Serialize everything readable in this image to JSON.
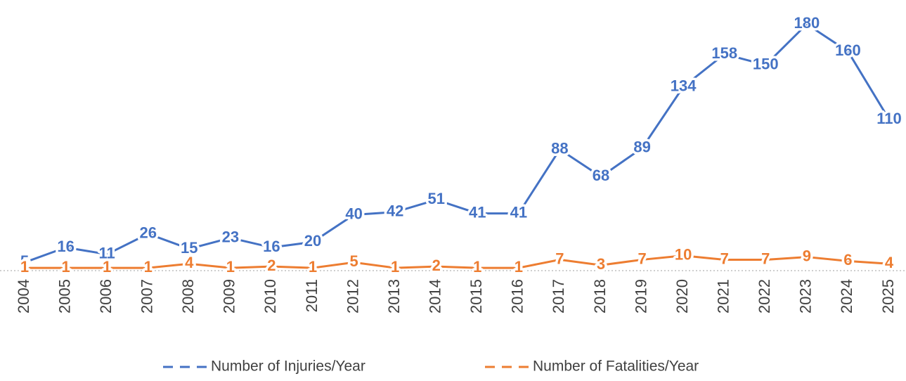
{
  "chart_data": {
    "type": "line",
    "categories": [
      "2004",
      "2005",
      "2006",
      "2007",
      "2008",
      "2009",
      "2010",
      "2011",
      "2012",
      "2013",
      "2014",
      "2015",
      "2016",
      "2017",
      "2018",
      "2019",
      "2020",
      "2021",
      "2022",
      "2023",
      "2024",
      "2025"
    ],
    "series": [
      {
        "name": "Number of Injuries/Year",
        "color": "#4472c4",
        "values": [
          5,
          16,
          11,
          26,
          15,
          23,
          16,
          20,
          40,
          42,
          51,
          41,
          41,
          88,
          68,
          89,
          134,
          158,
          150,
          180,
          160,
          110
        ]
      },
      {
        "name": "Number of Fatalities/Year",
        "color": "#ed7d31",
        "values": [
          1,
          1,
          1,
          1,
          4,
          1,
          2,
          1,
          5,
          1,
          2,
          1,
          1,
          7,
          3,
          7,
          10,
          7,
          7,
          9,
          6,
          4
        ]
      }
    ],
    "ylim": [
      0,
      190
    ],
    "legend": "bottom",
    "data_labels": true
  }
}
